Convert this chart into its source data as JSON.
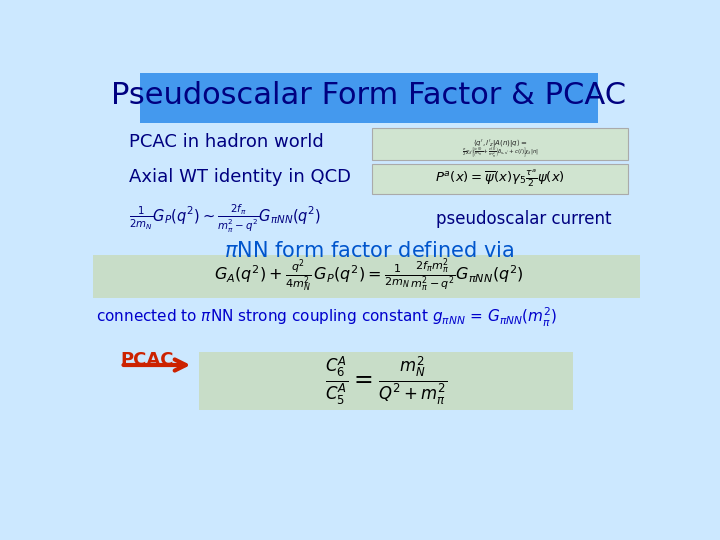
{
  "bg_color": "#cce8ff",
  "title_text": "Pseudoscalar Form Factor & PCAC",
  "title_bg": "#4499ee",
  "title_color": "#000080",
  "title_fontsize": 22,
  "pcac_hadron_text": "PCAC in hadron world",
  "axial_wt_text": "Axial WT identity in QCD",
  "pseudo_current_text": "pseudoscalar current",
  "piNN_text": "$\\pi$NN form factor defined via",
  "connected_text": "connected to $\\pi$NN strong coupling constant $g_{\\pi NN}$ = $G_{\\pi NN}(m_{\\pi}^{2})$",
  "pcac_label": "PCAC",
  "eq1": "$\\frac{1}{2m_N}G_P(q^2) \\sim \\frac{2f_\\pi}{m_\\pi^2 - q^2}G_{\\pi NN}(q^2)$",
  "eq2": "$G_A(q^2) + \\frac{q^2}{4m_N^2}\\,G_P(q^2) = \\frac{1}{2m_N}\\frac{2f_\\pi m_\\pi^2}{m_\\pi^2 - q^2}G_{\\pi NN}(q^2)$",
  "eq3": "$\\frac{C_6^A}{C_5^A} = \\frac{m_N^2}{Q^2 + m_\\pi^2}$",
  "eq_axial": "$P^a(x) = \\overline{\\psi}(x)\\gamma_5\\frac{\\tau^a}{2}\\psi(x)$",
  "dark_blue": "#000080",
  "blue_text": "#0000cc",
  "box_bg_green": "#c8ddc8",
  "box_bg_formula": "#d0e4d0",
  "red_arrow_color": "#cc2200"
}
